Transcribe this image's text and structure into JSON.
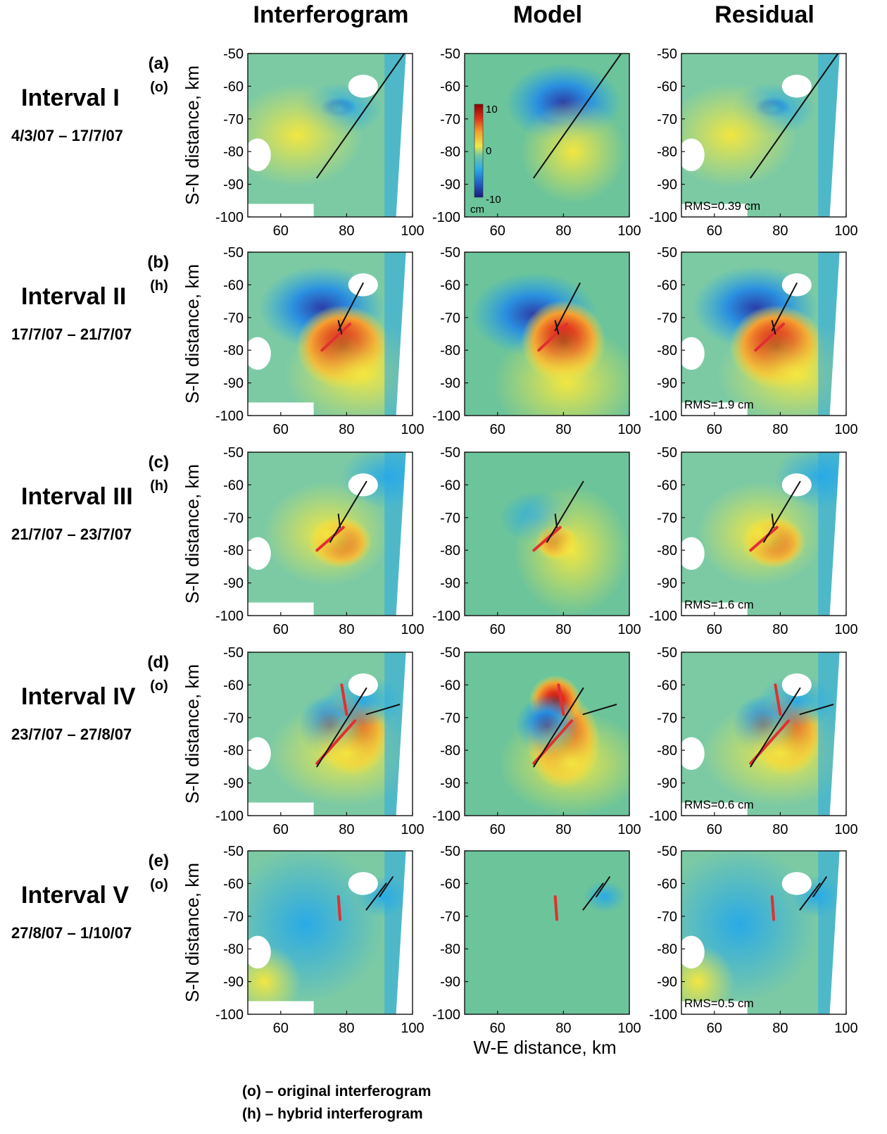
{
  "columns": [
    "Interferogram",
    "Model",
    "Residual"
  ],
  "rows": [
    {
      "letter": "(a)",
      "interval": "Interval I",
      "type": "(o)",
      "dates": "4/3/07 – 17/7/07",
      "rms": "RMS=0.39 cm"
    },
    {
      "letter": "(b)",
      "interval": "Interval II",
      "type": "(h)",
      "dates": "17/7/07 – 21/7/07",
      "rms": "RMS=1.9 cm"
    },
    {
      "letter": "(c)",
      "interval": "Interval III",
      "type": "(h)",
      "dates": "21/7/07 – 23/7/07",
      "rms": "RMS=1.6 cm"
    },
    {
      "letter": "(d)",
      "interval": "Interval IV",
      "type": "(o)",
      "dates": "23/7/07 – 27/8/07",
      "rms": "RMS=0.6 cm"
    },
    {
      "letter": "(e)",
      "interval": "Interval V",
      "type": "(o)",
      "dates": "27/8/07 – 1/10/07",
      "rms": "RMS=0.5 cm"
    }
  ],
  "axes": {
    "ylabel": "S-N distance, km",
    "xlabel": "W-E distance, km",
    "x_ticks": [
      "60",
      "80",
      "100"
    ],
    "y_ticks": [
      "-50",
      "-60",
      "-70",
      "-80",
      "-90",
      "-100"
    ],
    "xlim": [
      50,
      100
    ],
    "ylim": [
      -100,
      -50
    ]
  },
  "colorbar": {
    "max_label": "10",
    "mid_label": "0",
    "min_label": "-10",
    "unit": "cm",
    "range": [
      -10,
      10
    ]
  },
  "footnotes": [
    "(o) – original interferogram",
    "(h) – hybrid interferogram"
  ],
  "colors": {
    "background": "#73c8a0",
    "blue": "#2aaae6",
    "deep_blue": "#1e2a8c",
    "yellow": "#eee84a",
    "red": "#c81e14",
    "fault_black": "#111111",
    "fault_red": "#e03030"
  }
}
